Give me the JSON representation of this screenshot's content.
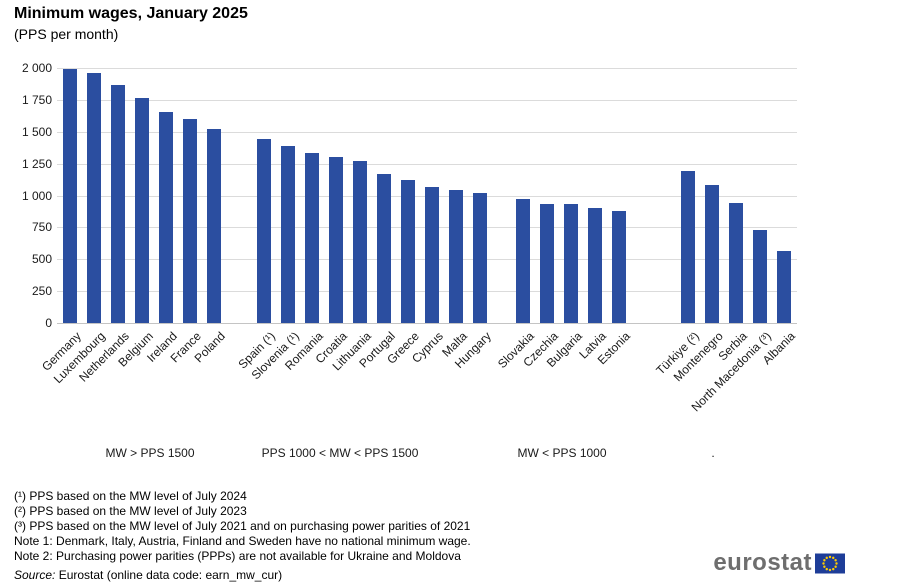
{
  "chart_data": {
    "type": "bar",
    "title": "Minimum wages, January 2025",
    "subtitle": "(PPS per month)",
    "ylabel": "",
    "ylim": [
      0,
      2000
    ],
    "ytick_step": 250,
    "ytick_labels": [
      "0",
      "250",
      "500",
      "750",
      "1 000",
      "1 250",
      "1 500",
      "1 750",
      "2 000"
    ],
    "grid": true,
    "legend": "none",
    "bar_color": "#2B4EA0",
    "groups": [
      {
        "label": "MW > PPS 1500",
        "bars": [
          {
            "country": "Germany",
            "value": 1992
          },
          {
            "country": "Luxembourg",
            "value": 1958
          },
          {
            "country": "Netherlands",
            "value": 1870
          },
          {
            "country": "Belgium",
            "value": 1767
          },
          {
            "country": "Ireland",
            "value": 1655
          },
          {
            "country": "France",
            "value": 1601
          },
          {
            "country": "Poland",
            "value": 1523
          }
        ]
      },
      {
        "label": "PPS 1000 < MW < PPS 1500",
        "bars": [
          {
            "country": "Spain (¹)",
            "value": 1443
          },
          {
            "country": "Slovenia (¹)",
            "value": 1391
          },
          {
            "country": "Romania",
            "value": 1331
          },
          {
            "country": "Croatia",
            "value": 1301
          },
          {
            "country": "Lithuania",
            "value": 1269
          },
          {
            "country": "Portugal",
            "value": 1167
          },
          {
            "country": "Greece",
            "value": 1125
          },
          {
            "country": "Cyprus",
            "value": 1063
          },
          {
            "country": "Malta",
            "value": 1042
          },
          {
            "country": "Hungary",
            "value": 1016
          }
        ]
      },
      {
        "label": "MW < PPS 1000",
        "bars": [
          {
            "country": "Slovakia",
            "value": 970
          },
          {
            "country": "Czechia",
            "value": 935
          },
          {
            "country": "Bulgaria",
            "value": 931
          },
          {
            "country": "Latvia",
            "value": 903
          },
          {
            "country": "Estonia",
            "value": 878
          }
        ]
      },
      {
        "label": ".",
        "bars": [
          {
            "country": "Türkiye (²)",
            "value": 1189
          },
          {
            "country": "Montenegro",
            "value": 1081
          },
          {
            "country": "Serbia",
            "value": 943
          },
          {
            "country": "North Macedonia (³)",
            "value": 730
          },
          {
            "country": "Albania",
            "value": 565
          }
        ]
      }
    ]
  },
  "footnotes": [
    "(¹) PPS based on the MW level of July 2024",
    "(²) PPS based on the MW level of July 2023",
    "(³) PPS based on the MW level of July 2021 and on purchasing power parities of 2021",
    "Note 1: Denmark, Italy, Austria, Finland and Sweden have no national minimum wage.",
    "Note 2: Purchasing power parities (PPPs) are not available for Ukraine and Moldova"
  ],
  "source": {
    "prefix": "Source:",
    "text": " Eurostat (online data code: earn_mw_cur)"
  },
  "logo": {
    "text": "eurostat"
  },
  "colors": {
    "bar": "#2B4EA0",
    "gridline": "#DBDBDB",
    "baseline": "#C4C4C4",
    "logo_text": "#6E6E6E",
    "flag_bg": "#1E3D98",
    "flag_stars": "#FFCC00"
  }
}
